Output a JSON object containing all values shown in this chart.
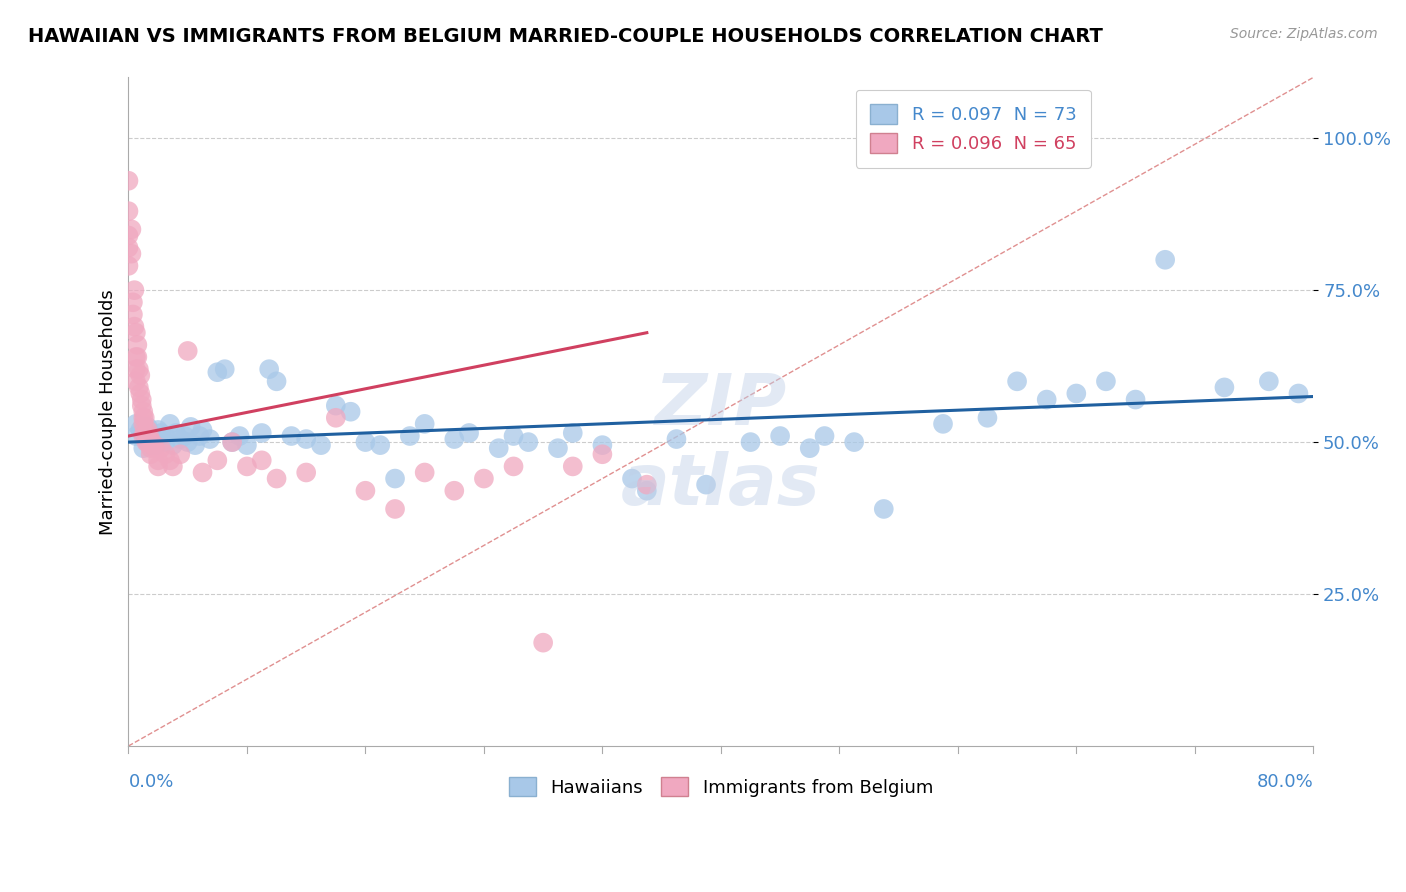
{
  "title": "HAWAIIAN VS IMMIGRANTS FROM BELGIUM MARRIED-COUPLE HOUSEHOLDS CORRELATION CHART",
  "source_text": "Source: ZipAtlas.com",
  "ylabel": "Married-couple Households",
  "ytick_labels": [
    "25.0%",
    "50.0%",
    "75.0%",
    "100.0%"
  ],
  "ytick_vals": [
    0.25,
    0.5,
    0.75,
    1.0
  ],
  "legend_blue_label": "R = 0.097  N = 73",
  "legend_pink_label": "R = 0.096  N = 65",
  "legend_bottom_blue": "Hawaiians",
  "legend_bottom_pink": "Immigrants from Belgium",
  "blue_color": "#a8c8e8",
  "blue_line_color": "#2060a0",
  "pink_color": "#f0a8c0",
  "pink_line_color": "#d04060",
  "diag_color": "#e09090",
  "x_min": 0.0,
  "x_max": 0.8,
  "y_min": 0.0,
  "y_max": 1.1,
  "blue_scatter_x": [
    0.005,
    0.005,
    0.008,
    0.01,
    0.01,
    0.012,
    0.013,
    0.015,
    0.015,
    0.018,
    0.02,
    0.02,
    0.022,
    0.025,
    0.025,
    0.028,
    0.03,
    0.032,
    0.035,
    0.038,
    0.04,
    0.042,
    0.045,
    0.048,
    0.05,
    0.055,
    0.06,
    0.065,
    0.07,
    0.075,
    0.08,
    0.09,
    0.095,
    0.1,
    0.11,
    0.12,
    0.13,
    0.14,
    0.15,
    0.16,
    0.17,
    0.18,
    0.19,
    0.2,
    0.22,
    0.23,
    0.25,
    0.26,
    0.27,
    0.29,
    0.3,
    0.32,
    0.34,
    0.35,
    0.37,
    0.39,
    0.42,
    0.44,
    0.46,
    0.47,
    0.49,
    0.51,
    0.55,
    0.58,
    0.6,
    0.62,
    0.64,
    0.66,
    0.68,
    0.7,
    0.74,
    0.77,
    0.79
  ],
  "blue_scatter_y": [
    0.53,
    0.51,
    0.52,
    0.49,
    0.515,
    0.505,
    0.525,
    0.5,
    0.51,
    0.495,
    0.52,
    0.505,
    0.515,
    0.5,
    0.51,
    0.53,
    0.495,
    0.515,
    0.505,
    0.51,
    0.5,
    0.525,
    0.495,
    0.51,
    0.52,
    0.505,
    0.615,
    0.62,
    0.5,
    0.51,
    0.495,
    0.515,
    0.62,
    0.6,
    0.51,
    0.505,
    0.495,
    0.56,
    0.55,
    0.5,
    0.495,
    0.44,
    0.51,
    0.53,
    0.505,
    0.515,
    0.49,
    0.51,
    0.5,
    0.49,
    0.515,
    0.495,
    0.44,
    0.42,
    0.505,
    0.43,
    0.5,
    0.51,
    0.49,
    0.51,
    0.5,
    0.39,
    0.53,
    0.54,
    0.6,
    0.57,
    0.58,
    0.6,
    0.57,
    0.8,
    0.59,
    0.6,
    0.58
  ],
  "pink_scatter_x": [
    0.0,
    0.0,
    0.0,
    0.0,
    0.0,
    0.002,
    0.002,
    0.003,
    0.003,
    0.004,
    0.004,
    0.005,
    0.005,
    0.005,
    0.005,
    0.006,
    0.006,
    0.007,
    0.007,
    0.008,
    0.008,
    0.009,
    0.009,
    0.01,
    0.01,
    0.01,
    0.01,
    0.011,
    0.011,
    0.012,
    0.012,
    0.013,
    0.013,
    0.014,
    0.015,
    0.015,
    0.016,
    0.017,
    0.018,
    0.02,
    0.02,
    0.022,
    0.025,
    0.028,
    0.03,
    0.035,
    0.04,
    0.05,
    0.06,
    0.07,
    0.08,
    0.09,
    0.1,
    0.12,
    0.14,
    0.16,
    0.18,
    0.2,
    0.22,
    0.24,
    0.26,
    0.28,
    0.3,
    0.32,
    0.35
  ],
  "pink_scatter_y": [
    0.93,
    0.88,
    0.84,
    0.82,
    0.79,
    0.81,
    0.85,
    0.73,
    0.71,
    0.75,
    0.69,
    0.68,
    0.64,
    0.62,
    0.6,
    0.66,
    0.64,
    0.62,
    0.59,
    0.61,
    0.58,
    0.57,
    0.56,
    0.55,
    0.54,
    0.53,
    0.51,
    0.54,
    0.52,
    0.51,
    0.5,
    0.52,
    0.5,
    0.51,
    0.49,
    0.48,
    0.5,
    0.495,
    0.49,
    0.47,
    0.46,
    0.49,
    0.48,
    0.47,
    0.46,
    0.48,
    0.65,
    0.45,
    0.47,
    0.5,
    0.46,
    0.47,
    0.44,
    0.45,
    0.54,
    0.42,
    0.39,
    0.45,
    0.42,
    0.44,
    0.46,
    0.17,
    0.46,
    0.48,
    0.43
  ],
  "blue_trend_x": [
    0.0,
    0.8
  ],
  "blue_trend_y": [
    0.5,
    0.575
  ],
  "pink_trend_x": [
    0.0,
    0.35
  ],
  "pink_trend_y": [
    0.51,
    0.68
  ]
}
